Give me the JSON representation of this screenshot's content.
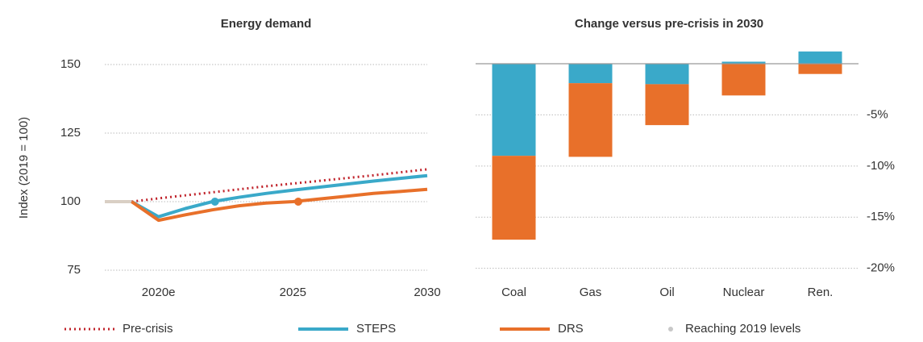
{
  "chart_data": [
    {
      "type": "line",
      "title": "Energy demand",
      "y_label": "Index (2019 = 100)",
      "x": [
        2018,
        2019,
        2020,
        2021,
        2022,
        2023,
        2024,
        2025,
        2026,
        2027,
        2028,
        2029,
        2030
      ],
      "xlim": [
        2018,
        2030
      ],
      "xticks": [
        {
          "value": 2020,
          "label": "2020e"
        },
        2025,
        2030
      ],
      "ylim": [
        75,
        150
      ],
      "yticks": [
        75,
        100,
        125,
        150
      ],
      "grid": true,
      "series": [
        {
          "color": "#d9cfc4",
          "style": "solid",
          "values": [
            100,
            100,
            null,
            null,
            null,
            null,
            null,
            null,
            null,
            null,
            null,
            null,
            null
          ]
        },
        {
          "name": "Pre-crisis",
          "color": "#c0232b",
          "style": "dotted",
          "values": [
            null,
            100,
            101.2,
            102.3,
            103.4,
            104.5,
            105.6,
            106.6,
            107.6,
            108.6,
            109.6,
            110.7,
            111.8
          ]
        },
        {
          "name": "STEPS",
          "color": "#3aa9c9",
          "style": "solid",
          "values": [
            null,
            100,
            94.5,
            97.5,
            100,
            101.6,
            103,
            104.2,
            105.3,
            106.4,
            107.5,
            108.5,
            109.5
          ]
        },
        {
          "name": "DRS",
          "color": "#e8702a",
          "style": "solid",
          "values": [
            null,
            100,
            93.2,
            95.2,
            97,
            98.5,
            99.5,
            100,
            101,
            102,
            103,
            103.7,
            104.5
          ]
        }
      ],
      "markers": {
        "name": "Reaching 2019 levels",
        "legend_color": "#c8c8c8",
        "x": [
          2022.1,
          2025.2
        ],
        "y": [
          100,
          100
        ],
        "colors": [
          "#3aa9c9",
          "#e8702a"
        ]
      }
    },
    {
      "type": "stacked_bar",
      "title": "Change versus pre-crisis in 2030",
      "categories": [
        "Coal",
        "Gas",
        "Oil",
        "Nuclear",
        "Ren."
      ],
      "ylim": [
        -20.5,
        1.5
      ],
      "yticks": [
        {
          "value": -5,
          "label": "-5%"
        },
        {
          "value": -10,
          "label": "-10%"
        },
        {
          "value": -15,
          "label": "-15%"
        },
        {
          "value": -20,
          "label": "-20%"
        }
      ],
      "grid": true,
      "series": [
        {
          "color": "#3aa9c9",
          "values": [
            -9,
            -1.9,
            -2,
            0.2,
            1.2
          ]
        },
        {
          "color": "#e8702a",
          "values": [
            -8.2,
            -7.2,
            -4,
            -3.1,
            -1
          ]
        }
      ]
    }
  ]
}
